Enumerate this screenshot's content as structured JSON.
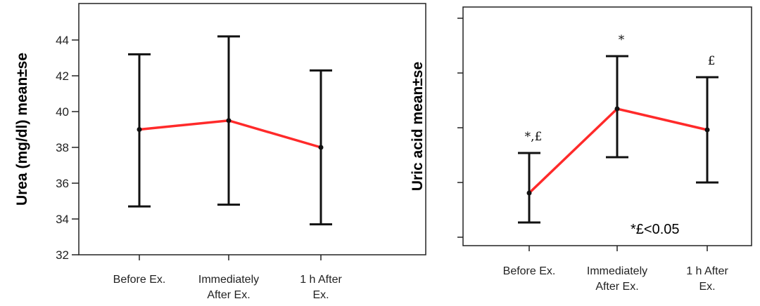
{
  "chart_data": [
    {
      "type": "line",
      "ylabel": "Urea (mg/dl) mean±se",
      "ylim": [
        32,
        45.6
      ],
      "yticks": [
        "32",
        "34",
        "36",
        "38",
        "40",
        "42",
        "44"
      ],
      "categories": [
        [
          "Before Ex."
        ],
        [
          "Immediately",
          "After Ex."
        ],
        [
          "1 h After",
          "Ex."
        ]
      ],
      "series": [
        {
          "mean": [
            39.0,
            39.5,
            38.0
          ],
          "lower": [
            34.7,
            34.8,
            33.7
          ],
          "upper": [
            43.2,
            44.2,
            42.3
          ]
        }
      ],
      "annotations": [],
      "grid": false,
      "line_color": "#ff2a2a"
    },
    {
      "type": "line",
      "ylabel": "Uric acid mean±se",
      "ylim": [
        0,
        10
      ],
      "yticks": [
        "",
        "",
        "",
        "",
        ""
      ],
      "categories": [
        [
          "Before Ex."
        ],
        [
          "Immediately",
          "After Ex."
        ],
        [
          "1 h After",
          "Ex."
        ]
      ],
      "series": [
        {
          "mean": [
            2.1,
            6.1,
            5.1
          ],
          "lower": [
            0.7,
            3.8,
            2.6
          ],
          "upper": [
            4.0,
            8.6,
            7.6
          ]
        }
      ],
      "annotations": [
        "*,£",
        "*",
        "£"
      ],
      "note": "*£<0.05",
      "grid": false,
      "line_color": "#ff2a2a"
    }
  ]
}
